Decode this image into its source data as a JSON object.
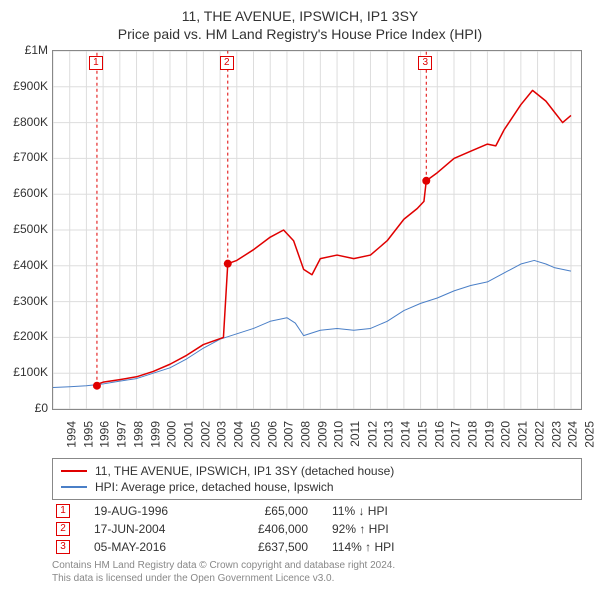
{
  "title_line1": "11, THE AVENUE, IPSWICH, IP1 3SY",
  "title_line2": "Price paid vs. HM Land Registry's House Price Index (HPI)",
  "chart": {
    "type": "line",
    "background_color": "#ffffff",
    "border_color": "#888888",
    "grid_color": "#dddddd",
    "xlim": [
      1994,
      2025.6
    ],
    "ylim": [
      0,
      1000000
    ],
    "xticks": [
      1994,
      1995,
      1996,
      1997,
      1998,
      1999,
      2000,
      2001,
      2002,
      2003,
      2004,
      2005,
      2006,
      2007,
      2008,
      2009,
      2010,
      2011,
      2012,
      2013,
      2014,
      2015,
      2016,
      2017,
      2018,
      2019,
      2020,
      2021,
      2022,
      2023,
      2024,
      2025
    ],
    "ytick_step": 100000,
    "ylabels": [
      "£0",
      "£100K",
      "£200K",
      "£300K",
      "£400K",
      "£500K",
      "£600K",
      "£700K",
      "£800K",
      "£900K",
      "£1M"
    ],
    "series": [
      {
        "name": "11, THE AVENUE, IPSWICH, IP1 3SY (detached house)",
        "color": "#e00000",
        "line_width": 1.5,
        "points": [
          [
            1996.63,
            65000
          ],
          [
            1996.7,
            70000
          ],
          [
            1997,
            75000
          ],
          [
            1998,
            82000
          ],
          [
            1999,
            90000
          ],
          [
            2000,
            105000
          ],
          [
            2001,
            125000
          ],
          [
            2002,
            150000
          ],
          [
            2003,
            180000
          ],
          [
            2004.2,
            200000
          ],
          [
            2004.46,
            406000
          ],
          [
            2005,
            415000
          ],
          [
            2006,
            445000
          ],
          [
            2007,
            480000
          ],
          [
            2007.8,
            500000
          ],
          [
            2008.4,
            470000
          ],
          [
            2009,
            390000
          ],
          [
            2009.5,
            375000
          ],
          [
            2010,
            420000
          ],
          [
            2011,
            430000
          ],
          [
            2012,
            420000
          ],
          [
            2013,
            430000
          ],
          [
            2014,
            470000
          ],
          [
            2015,
            530000
          ],
          [
            2015.8,
            560000
          ],
          [
            2016.2,
            580000
          ],
          [
            2016.34,
            637500
          ],
          [
            2017,
            660000
          ],
          [
            2018,
            700000
          ],
          [
            2019,
            720000
          ],
          [
            2020,
            740000
          ],
          [
            2020.5,
            735000
          ],
          [
            2021,
            780000
          ],
          [
            2022,
            850000
          ],
          [
            2022.7,
            890000
          ],
          [
            2023.5,
            860000
          ],
          [
            2024,
            830000
          ],
          [
            2024.5,
            800000
          ],
          [
            2025,
            820000
          ]
        ],
        "gap_before": 1996.63
      },
      {
        "name": "HPI: Average price, detached house, Ipswich",
        "color": "#4a7fc7",
        "line_width": 1,
        "points": [
          [
            1994,
            60000
          ],
          [
            1995,
            62000
          ],
          [
            1996,
            65000
          ],
          [
            1997,
            70000
          ],
          [
            1998,
            78000
          ],
          [
            1999,
            85000
          ],
          [
            2000,
            100000
          ],
          [
            2001,
            115000
          ],
          [
            2002,
            140000
          ],
          [
            2003,
            170000
          ],
          [
            2004,
            195000
          ],
          [
            2005,
            210000
          ],
          [
            2006,
            225000
          ],
          [
            2007,
            245000
          ],
          [
            2008,
            255000
          ],
          [
            2008.5,
            240000
          ],
          [
            2009,
            205000
          ],
          [
            2010,
            220000
          ],
          [
            2011,
            225000
          ],
          [
            2012,
            220000
          ],
          [
            2013,
            225000
          ],
          [
            2014,
            245000
          ],
          [
            2015,
            275000
          ],
          [
            2016,
            295000
          ],
          [
            2017,
            310000
          ],
          [
            2018,
            330000
          ],
          [
            2019,
            345000
          ],
          [
            2020,
            355000
          ],
          [
            2021,
            380000
          ],
          [
            2022,
            405000
          ],
          [
            2022.8,
            415000
          ],
          [
            2023.5,
            405000
          ],
          [
            2024,
            395000
          ],
          [
            2025,
            385000
          ]
        ]
      }
    ],
    "sale_markers": [
      {
        "n": "1",
        "x": 1996.63,
        "y": 65000,
        "y2": 1000000,
        "dash": true
      },
      {
        "n": "2",
        "x": 2004.46,
        "y": 406000,
        "y2": 1000000,
        "dash": true
      },
      {
        "n": "3",
        "x": 2016.34,
        "y": 637500,
        "y2": 1000000,
        "dash": true
      }
    ],
    "marker_dash_color": "#e00000",
    "marker_point_color": "#e00000",
    "marker_point_radius": 4
  },
  "legend": {
    "rows": [
      {
        "color": "#e00000",
        "label": "11, THE AVENUE, IPSWICH, IP1 3SY (detached house)"
      },
      {
        "color": "#4a7fc7",
        "label": "HPI: Average price, detached house, Ipswich"
      }
    ]
  },
  "sales": [
    {
      "n": "1",
      "date": "19-AUG-1996",
      "price": "£65,000",
      "delta": "11% ↓ HPI"
    },
    {
      "n": "2",
      "date": "17-JUN-2004",
      "price": "£406,000",
      "delta": "92% ↑ HPI"
    },
    {
      "n": "3",
      "date": "05-MAY-2016",
      "price": "£637,500",
      "delta": "114% ↑ HPI"
    }
  ],
  "footer_line1": "Contains HM Land Registry data © Crown copyright and database right 2024.",
  "footer_line2": "This data is licensed under the Open Government Licence v3.0."
}
